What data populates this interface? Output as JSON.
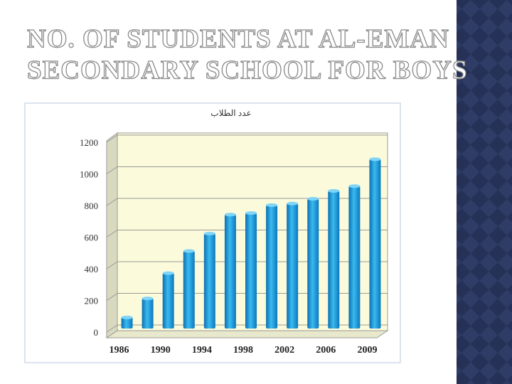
{
  "slide": {
    "title_lines": [
      "NO. OF STUDENTS AT AL-EMAN",
      "SECONDARY SCHOOL FOR BOYS"
    ]
  },
  "chart_data": {
    "type": "bar",
    "title": "عدد الطلاب",
    "categories": [
      "1986",
      null,
      "1990",
      null,
      "1994",
      null,
      "1998",
      null,
      "2002",
      null,
      "2006",
      null,
      "2009"
    ],
    "values": [
      70,
      190,
      350,
      490,
      600,
      720,
      730,
      780,
      790,
      820,
      870,
      900,
      1070
    ],
    "color": "#1d9ee0",
    "ylim": [
      0,
      1200
    ],
    "yticks": [
      0,
      200,
      400,
      600,
      800,
      1000,
      1200
    ],
    "grid": true
  }
}
